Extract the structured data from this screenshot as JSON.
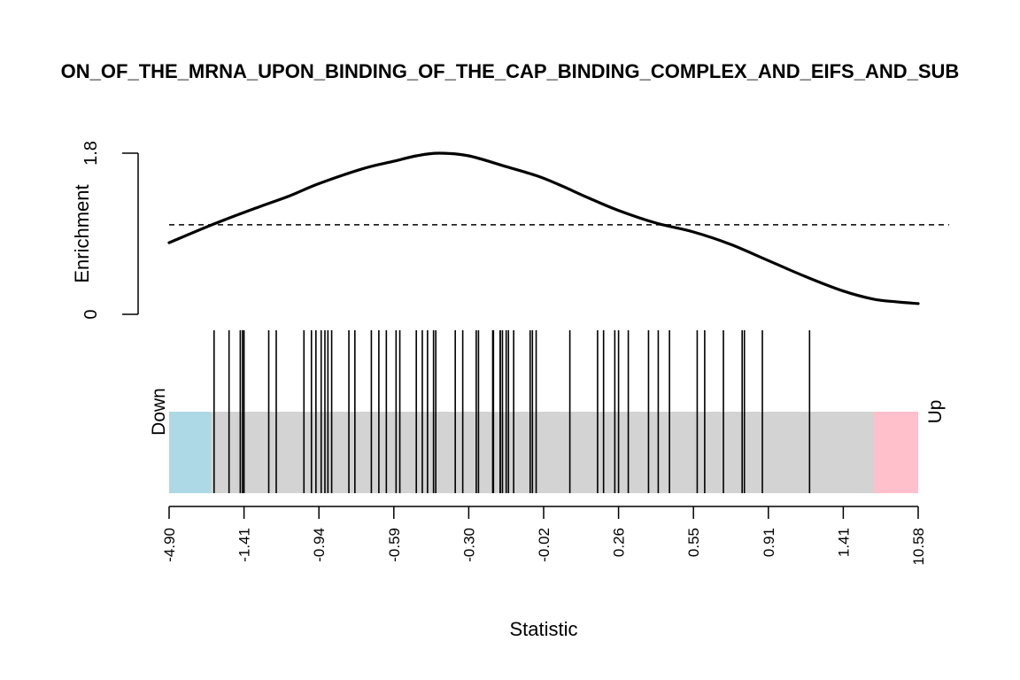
{
  "chart_data": {
    "type": "barcode",
    "title": "ON_OF_THE_MRNA_UPON_BINDING_OF_THE_CAP_BINDING_COMPLEX_AND_EIFS_AND_SUB",
    "xlabel": "Statistic",
    "ylabel": "Enrichment",
    "ylim": [
      0,
      1.8
    ],
    "y_ticks": [
      "0",
      "1.8"
    ],
    "x_tick_labels": [
      "-4.90",
      "-1.41",
      "-0.94",
      "-0.59",
      "-0.30",
      "-0.02",
      "0.26",
      "0.55",
      "0.91",
      "1.41",
      "10.58"
    ],
    "rank_range": [
      0,
      1
    ],
    "baseline_enrichment": 1.0,
    "down_label": "Down",
    "up_label": "Up",
    "colors": {
      "down": "#add8e6",
      "up": "#ffc0cb",
      "middle": "#d3d3d3",
      "line": "#000000"
    },
    "down_region_end": 0.055,
    "up_region_start": 0.94,
    "enrichment_curve": {
      "x": [
        0.0,
        0.06,
        0.12,
        0.16,
        0.2,
        0.26,
        0.3,
        0.33,
        0.36,
        0.4,
        0.45,
        0.49,
        0.52,
        0.56,
        0.6,
        0.65,
        0.7,
        0.75,
        0.8,
        0.85,
        0.9,
        0.94,
        0.97,
        1.0
      ],
      "y": [
        0.8,
        1.01,
        1.2,
        1.32,
        1.46,
        1.63,
        1.71,
        1.77,
        1.8,
        1.77,
        1.65,
        1.55,
        1.45,
        1.3,
        1.16,
        1.02,
        0.92,
        0.78,
        0.6,
        0.42,
        0.26,
        0.17,
        0.14,
        0.12
      ]
    },
    "gene_positions": [
      0.06,
      0.08,
      0.095,
      0.098,
      0.1,
      0.133,
      0.143,
      0.18,
      0.19,
      0.196,
      0.203,
      0.208,
      0.212,
      0.217,
      0.24,
      0.248,
      0.27,
      0.28,
      0.29,
      0.303,
      0.308,
      0.33,
      0.338,
      0.345,
      0.353,
      0.356,
      0.382,
      0.392,
      0.41,
      0.413,
      0.433,
      0.432,
      0.442,
      0.445,
      0.442,
      0.45,
      0.453,
      0.46,
      0.482,
      0.485,
      0.49,
      0.535,
      0.572,
      0.58,
      0.595,
      0.6,
      0.613,
      0.64,
      0.653,
      0.668,
      0.705,
      0.715,
      0.74,
      0.765,
      0.768,
      0.792,
      0.855
    ]
  }
}
